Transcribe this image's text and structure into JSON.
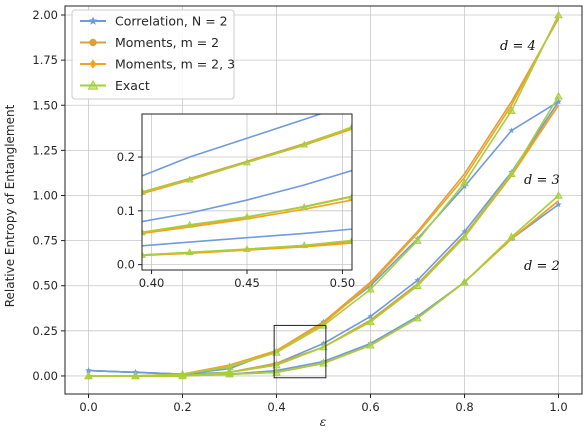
{
  "chart_data": {
    "type": "line",
    "xlabel": "ε",
    "ylabel": "Relative Entropy of Entanglement",
    "xlim": [
      -0.05,
      1.05
    ],
    "ylim": [
      -0.1,
      2.05
    ],
    "xticks": [
      "0.0",
      "0.2",
      "0.4",
      "0.6",
      "0.8",
      "1.0"
    ],
    "yticks": [
      "0.00",
      "0.25",
      "0.50",
      "0.75",
      "1.00",
      "1.25",
      "1.50",
      "1.75",
      "2.00"
    ],
    "grid": true,
    "legend_position": "top-left",
    "legend": [
      {
        "text": "Correlation, N = 2",
        "color": "#6f9bdc",
        "marker": "star"
      },
      {
        "text": "Moments, m = 2",
        "color": "#d9a03f",
        "marker": "circle"
      },
      {
        "text": "Moments, m = 2, 3",
        "color": "#f6a21d",
        "marker": "diamond"
      },
      {
        "text": "Exact",
        "color": "#a6cf3c",
        "marker": "triangle"
      }
    ],
    "annotations": [
      "d = 4",
      "d = 3",
      "d = 2"
    ],
    "x": [
      0.0,
      0.1,
      0.2,
      0.3,
      0.4,
      0.5,
      0.6,
      0.7,
      0.8,
      0.9,
      1.0
    ],
    "series": [
      {
        "group": "d = 4",
        "legend": "Correlation, N = 2",
        "values": [
          0.03,
          0.02,
          0.01,
          0.04,
          0.14,
          0.3,
          0.5,
          0.76,
          1.05,
          1.36,
          1.52
        ]
      },
      {
        "group": "d = 4",
        "legend": "Moments, m = 2",
        "values": [
          0.0,
          0.0,
          0.01,
          0.06,
          0.14,
          0.3,
          0.52,
          0.8,
          1.12,
          1.52,
          1.98
        ]
      },
      {
        "group": "d = 4",
        "legend": "Moments, m = 2, 3",
        "values": [
          0.0,
          0.0,
          0.01,
          0.06,
          0.14,
          0.29,
          0.51,
          0.79,
          1.1,
          1.5,
          1.99
        ]
      },
      {
        "group": "d = 4",
        "legend": "Exact",
        "values": [
          0.0,
          0.0,
          0.01,
          0.05,
          0.13,
          0.28,
          0.48,
          0.75,
          1.07,
          1.47,
          2.0
        ]
      },
      {
        "group": "d = 3",
        "legend": "Correlation, N = 2",
        "values": [
          0.03,
          0.02,
          0.01,
          0.02,
          0.07,
          0.18,
          0.33,
          0.53,
          0.8,
          1.13,
          1.52
        ]
      },
      {
        "group": "d = 3",
        "legend": "Moments, m = 2",
        "values": [
          0.0,
          0.0,
          0.0,
          0.02,
          0.07,
          0.16,
          0.31,
          0.51,
          0.78,
          1.12,
          1.5
        ]
      },
      {
        "group": "d = 3",
        "legend": "Moments, m = 2, 3",
        "values": [
          0.0,
          0.0,
          0.0,
          0.02,
          0.06,
          0.16,
          0.3,
          0.5,
          0.77,
          1.11,
          1.5
        ]
      },
      {
        "group": "d = 3",
        "legend": "Exact",
        "values": [
          0.0,
          0.0,
          0.0,
          0.02,
          0.06,
          0.16,
          0.3,
          0.5,
          0.77,
          1.12,
          1.55
        ]
      },
      {
        "group": "d = 2",
        "legend": "Correlation, N = 2",
        "values": [
          0.03,
          0.02,
          0.01,
          0.01,
          0.03,
          0.08,
          0.18,
          0.33,
          0.52,
          0.76,
          0.95
        ]
      },
      {
        "group": "d = 2",
        "legend": "Moments, m = 2",
        "values": [
          0.0,
          0.0,
          0.0,
          0.01,
          0.02,
          0.07,
          0.17,
          0.32,
          0.52,
          0.76,
          0.97
        ]
      },
      {
        "group": "d = 2",
        "legend": "Moments, m = 2, 3",
        "values": [
          0.0,
          0.0,
          0.0,
          0.01,
          0.02,
          0.07,
          0.17,
          0.32,
          0.52,
          0.76,
          0.97
        ]
      },
      {
        "group": "d = 2",
        "legend": "Exact",
        "values": [
          0.0,
          0.0,
          0.0,
          0.01,
          0.02,
          0.07,
          0.17,
          0.32,
          0.52,
          0.77,
          1.0
        ]
      }
    ],
    "inset": {
      "xlim": [
        0.395,
        0.505
      ],
      "ylim": [
        -0.01,
        0.28
      ],
      "xticks": [
        "0.40",
        "0.45",
        "0.50"
      ],
      "yticks": [
        "0.0",
        "0.1",
        "0.2"
      ],
      "x": [
        0.395,
        0.42,
        0.45,
        0.48,
        0.505
      ],
      "series": [
        {
          "legend": "Correlation, N = 2",
          "values": [
            0.165,
            0.2,
            0.235,
            0.27,
            0.3
          ]
        },
        {
          "legend": "Moments, m = 2",
          "values": [
            0.135,
            0.16,
            0.192,
            0.225,
            0.255
          ]
        },
        {
          "legend": "Moments, m = 2, 3",
          "values": [
            0.132,
            0.157,
            0.19,
            0.222,
            0.252
          ]
        },
        {
          "legend": "Exact",
          "values": [
            0.135,
            0.158,
            0.19,
            0.223,
            0.256
          ]
        },
        {
          "legend": "Correlation, N = 2",
          "values": [
            0.08,
            0.096,
            0.12,
            0.148,
            0.175
          ]
        },
        {
          "legend": "Moments, m = 2",
          "values": [
            0.06,
            0.073,
            0.088,
            0.108,
            0.127
          ]
        },
        {
          "legend": "Moments, m = 2, 3",
          "values": [
            0.058,
            0.07,
            0.085,
            0.103,
            0.12
          ]
        },
        {
          "legend": "Exact",
          "values": [
            0.06,
            0.074,
            0.089,
            0.107,
            0.126
          ]
        },
        {
          "legend": "Correlation, N = 2",
          "values": [
            0.035,
            0.042,
            0.05,
            0.058,
            0.066
          ]
        },
        {
          "legend": "Moments, m = 2",
          "values": [
            0.018,
            0.022,
            0.028,
            0.035,
            0.043
          ]
        },
        {
          "legend": "Moments, m = 2, 3",
          "values": [
            0.017,
            0.021,
            0.027,
            0.033,
            0.04
          ]
        },
        {
          "legend": "Exact",
          "values": [
            0.018,
            0.023,
            0.029,
            0.036,
            0.045
          ]
        }
      ]
    }
  }
}
